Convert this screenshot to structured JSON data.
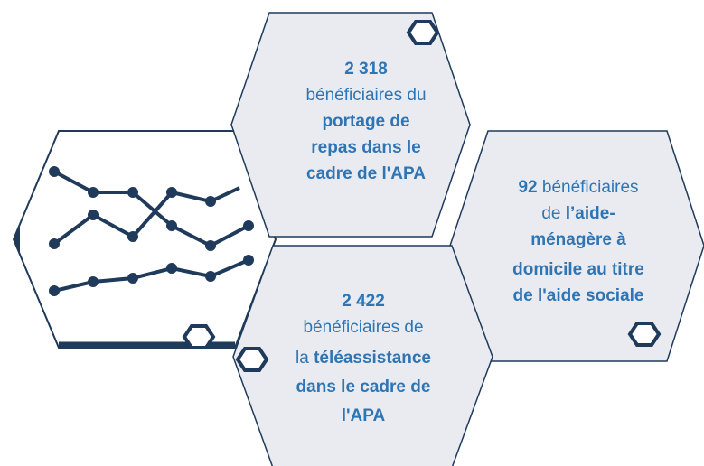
{
  "hexagons": [
    {
      "lines": [
        [
          "2  318"
        ],
        [
          "bénéficiaires du"
        ],
        [
          "portage de"
        ],
        [
          "repas dans le"
        ],
        [
          "cadre de l'APA"
        ]
      ]
    },
    {
      "lines": [
        [
          "92",
          "bénéficiaires"
        ],
        [
          "de",
          "l’aide-"
        ],
        [
          "ménagère à"
        ],
        [
          "domicile au titre"
        ],
        [
          "de l'aide sociale"
        ]
      ]
    },
    {
      "lines": [
        [
          "2 422"
        ],
        [
          "bénéficiaires de"
        ],
        [
          "la",
          "téléassistance"
        ],
        [
          "dans le cadre de"
        ],
        [
          "l'APA"
        ]
      ]
    }
  ]
}
